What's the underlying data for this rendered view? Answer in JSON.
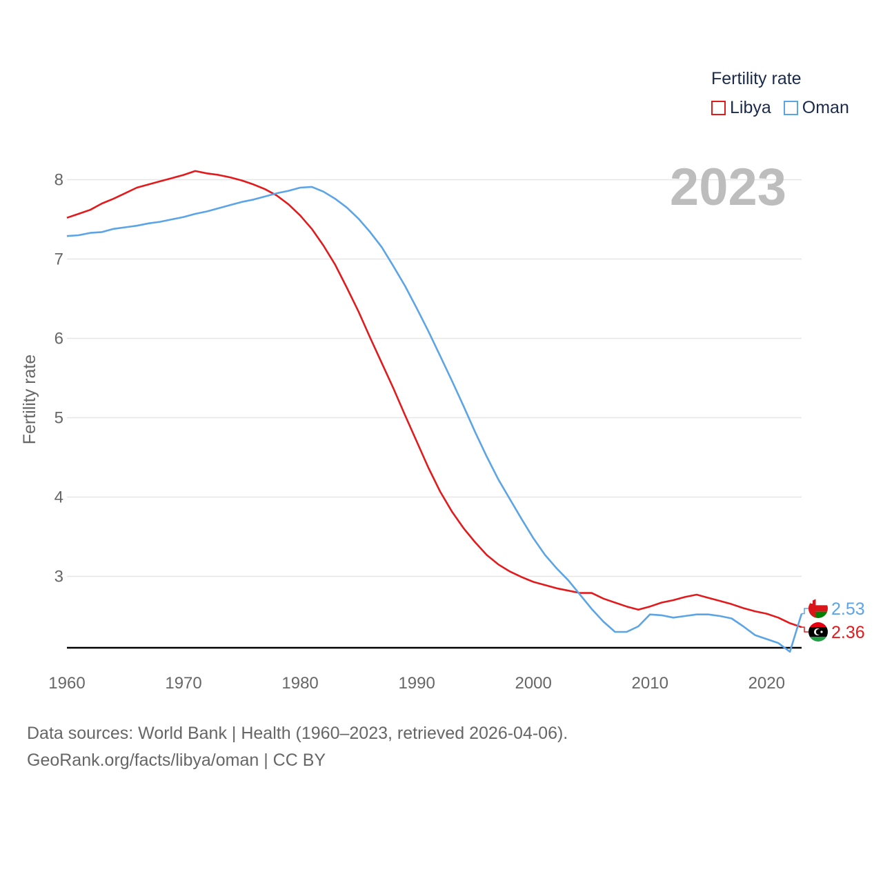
{
  "legend": {
    "title": "Fertility rate",
    "items": [
      {
        "label": "Libya",
        "color": "#e31a1c"
      },
      {
        "label": "Oman",
        "color": "#5ba4e6"
      }
    ]
  },
  "year_label": "2023",
  "source": {
    "line1": "Data sources: World Bank | Health (1960–2023, retrieved 2026-04-06).",
    "line2": "GeoRank.org/facts/libya/oman | CC BY"
  },
  "end_labels": {
    "libya": "2.36",
    "oman": "2.53"
  },
  "flags": {
    "libya": "libya-flag-icon",
    "oman": "oman-flag-icon"
  },
  "chart_data": {
    "type": "line",
    "title": "",
    "xlabel": "",
    "ylabel": "Fertility rate",
    "xlim": [
      1960,
      2023
    ],
    "ylim": [
      2.1,
      8.3
    ],
    "x_ticks": [
      1960,
      1970,
      1980,
      1990,
      2000,
      2010,
      2020
    ],
    "y_ticks": [
      3,
      4,
      5,
      6,
      7,
      8
    ],
    "x": [
      1960,
      1961,
      1962,
      1963,
      1964,
      1965,
      1966,
      1967,
      1968,
      1969,
      1970,
      1971,
      1972,
      1973,
      1974,
      1975,
      1976,
      1977,
      1978,
      1979,
      1980,
      1981,
      1982,
      1983,
      1984,
      1985,
      1986,
      1987,
      1988,
      1989,
      1990,
      1991,
      1992,
      1993,
      1994,
      1995,
      1996,
      1997,
      1998,
      1999,
      2000,
      2001,
      2002,
      2003,
      2004,
      2005,
      2006,
      2007,
      2008,
      2009,
      2010,
      2011,
      2012,
      2013,
      2014,
      2015,
      2016,
      2017,
      2018,
      2019,
      2020,
      2021,
      2022,
      2023
    ],
    "series": [
      {
        "name": "Libya",
        "color": "#e31a1c",
        "values": [
          7.52,
          7.57,
          7.62,
          7.7,
          7.76,
          7.83,
          7.9,
          7.94,
          7.98,
          8.02,
          8.06,
          8.11,
          8.08,
          8.06,
          8.03,
          7.99,
          7.94,
          7.88,
          7.8,
          7.69,
          7.55,
          7.38,
          7.17,
          6.93,
          6.64,
          6.34,
          6.01,
          5.69,
          5.37,
          5.03,
          4.7,
          4.37,
          4.07,
          3.82,
          3.61,
          3.43,
          3.27,
          3.15,
          3.06,
          2.99,
          2.93,
          2.89,
          2.85,
          2.82,
          2.79,
          2.79,
          2.72,
          2.67,
          2.62,
          2.58,
          2.62,
          2.67,
          2.7,
          2.74,
          2.77,
          2.73,
          2.69,
          2.65,
          2.6,
          2.56,
          2.53,
          2.48,
          2.41,
          2.36
        ]
      },
      {
        "name": "Oman",
        "color": "#5ba4e6",
        "values": [
          7.29,
          7.3,
          7.33,
          7.34,
          7.38,
          7.4,
          7.42,
          7.45,
          7.47,
          7.5,
          7.53,
          7.57,
          7.6,
          7.64,
          7.68,
          7.72,
          7.75,
          7.79,
          7.83,
          7.86,
          7.9,
          7.91,
          7.85,
          7.76,
          7.65,
          7.51,
          7.34,
          7.15,
          6.91,
          6.66,
          6.38,
          6.09,
          5.78,
          5.47,
          5.15,
          4.82,
          4.51,
          4.22,
          3.97,
          3.72,
          3.48,
          3.27,
          3.1,
          2.95,
          2.77,
          2.59,
          2.43,
          2.3,
          2.3,
          2.37,
          2.52,
          2.51,
          2.48,
          2.5,
          2.52,
          2.52,
          2.5,
          2.47,
          2.37,
          2.26,
          2.21,
          2.16,
          2.05,
          2.53
        ]
      }
    ],
    "legend_position": "top-right",
    "grid": true
  }
}
